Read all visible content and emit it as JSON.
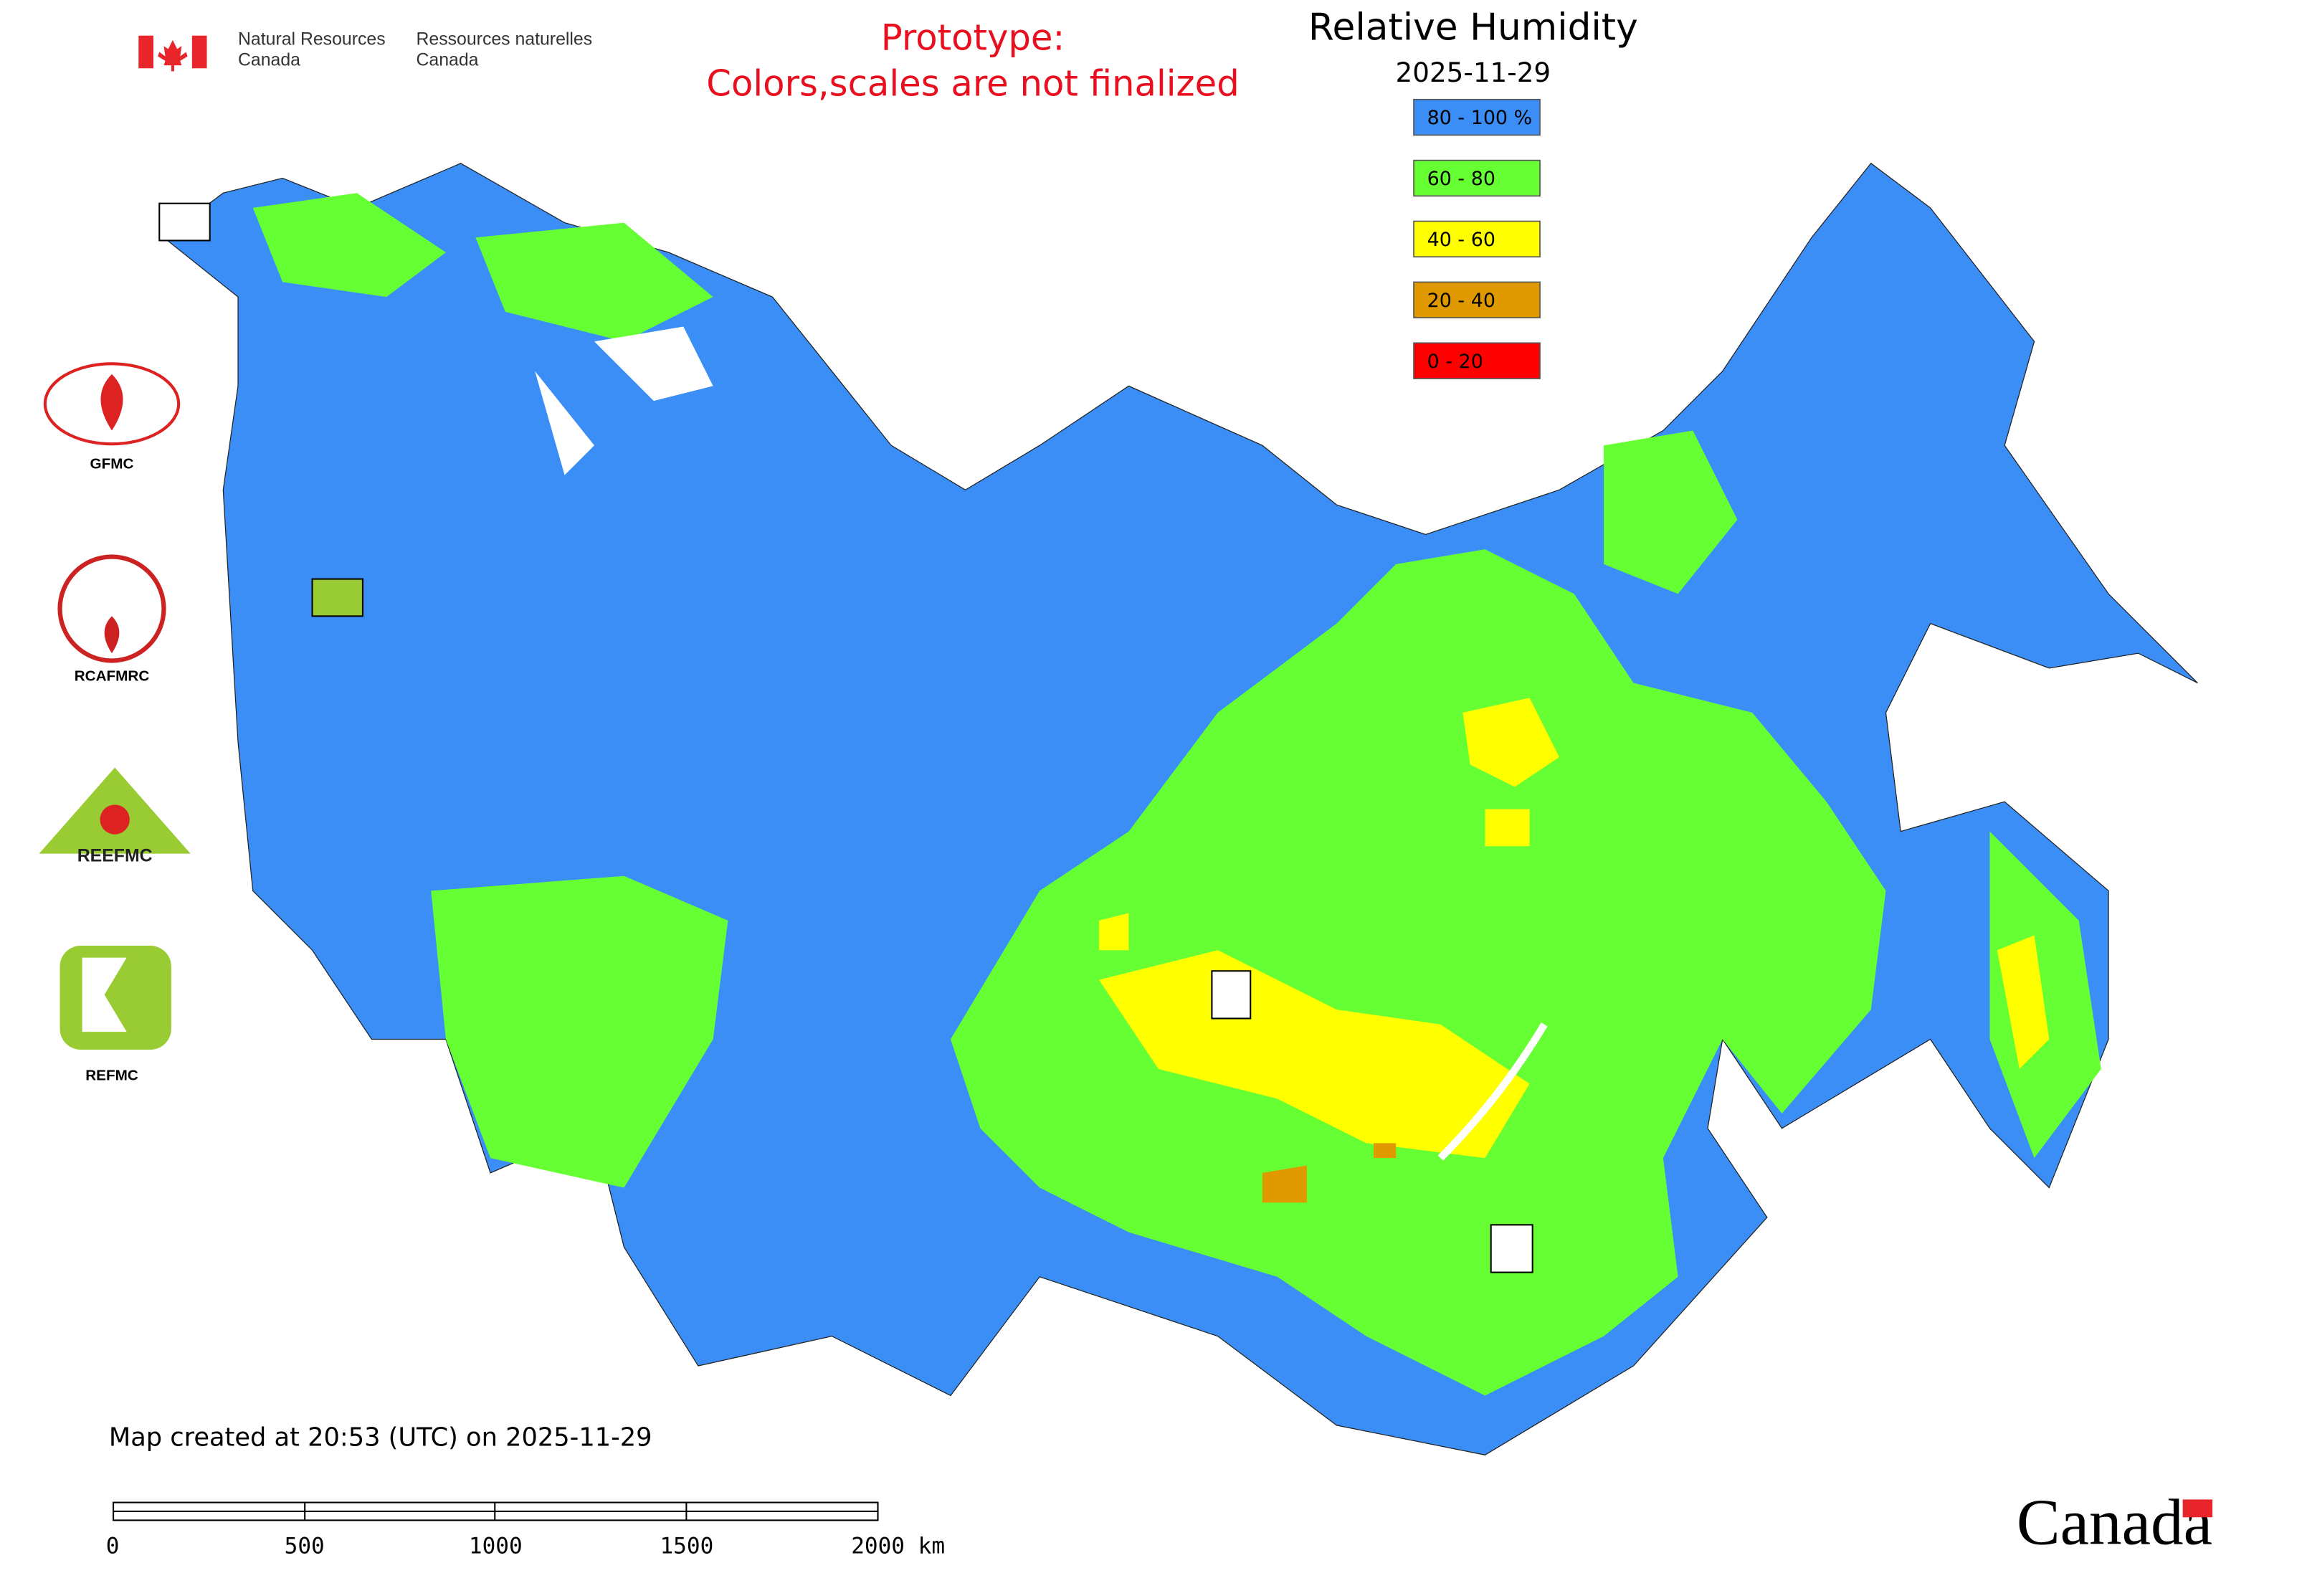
{
  "header": {
    "agency_en": [
      "Natural Resources",
      "Canada"
    ],
    "agency_fr": [
      "Ressources naturelles",
      "Canada"
    ],
    "notice": [
      "Prototype:",
      "Colors,scales are not finalized"
    ]
  },
  "map": {
    "title": "Relative Humidity",
    "date": "2025-11-29",
    "legend": [
      {
        "label": "80 - 100 %",
        "color": "#3a8ef5"
      },
      {
        "label": "60 - 80",
        "color": "#66ff33"
      },
      {
        "label": "40 - 60",
        "color": "#ffff00"
      },
      {
        "label": "20 - 40",
        "color": "#e09a00"
      },
      {
        "label": "0 - 20",
        "color": "#ff0000"
      }
    ]
  },
  "logos": [
    "GFMC",
    "RCAFMRC",
    "REEFMC",
    "REFMC"
  ],
  "footer": {
    "created": "Map created at 20:53 (UTC) on 2025-11-29",
    "scale_labels": [
      "0",
      "500",
      "1000",
      "1500",
      "2000 km"
    ],
    "wordmark": "Canada"
  }
}
